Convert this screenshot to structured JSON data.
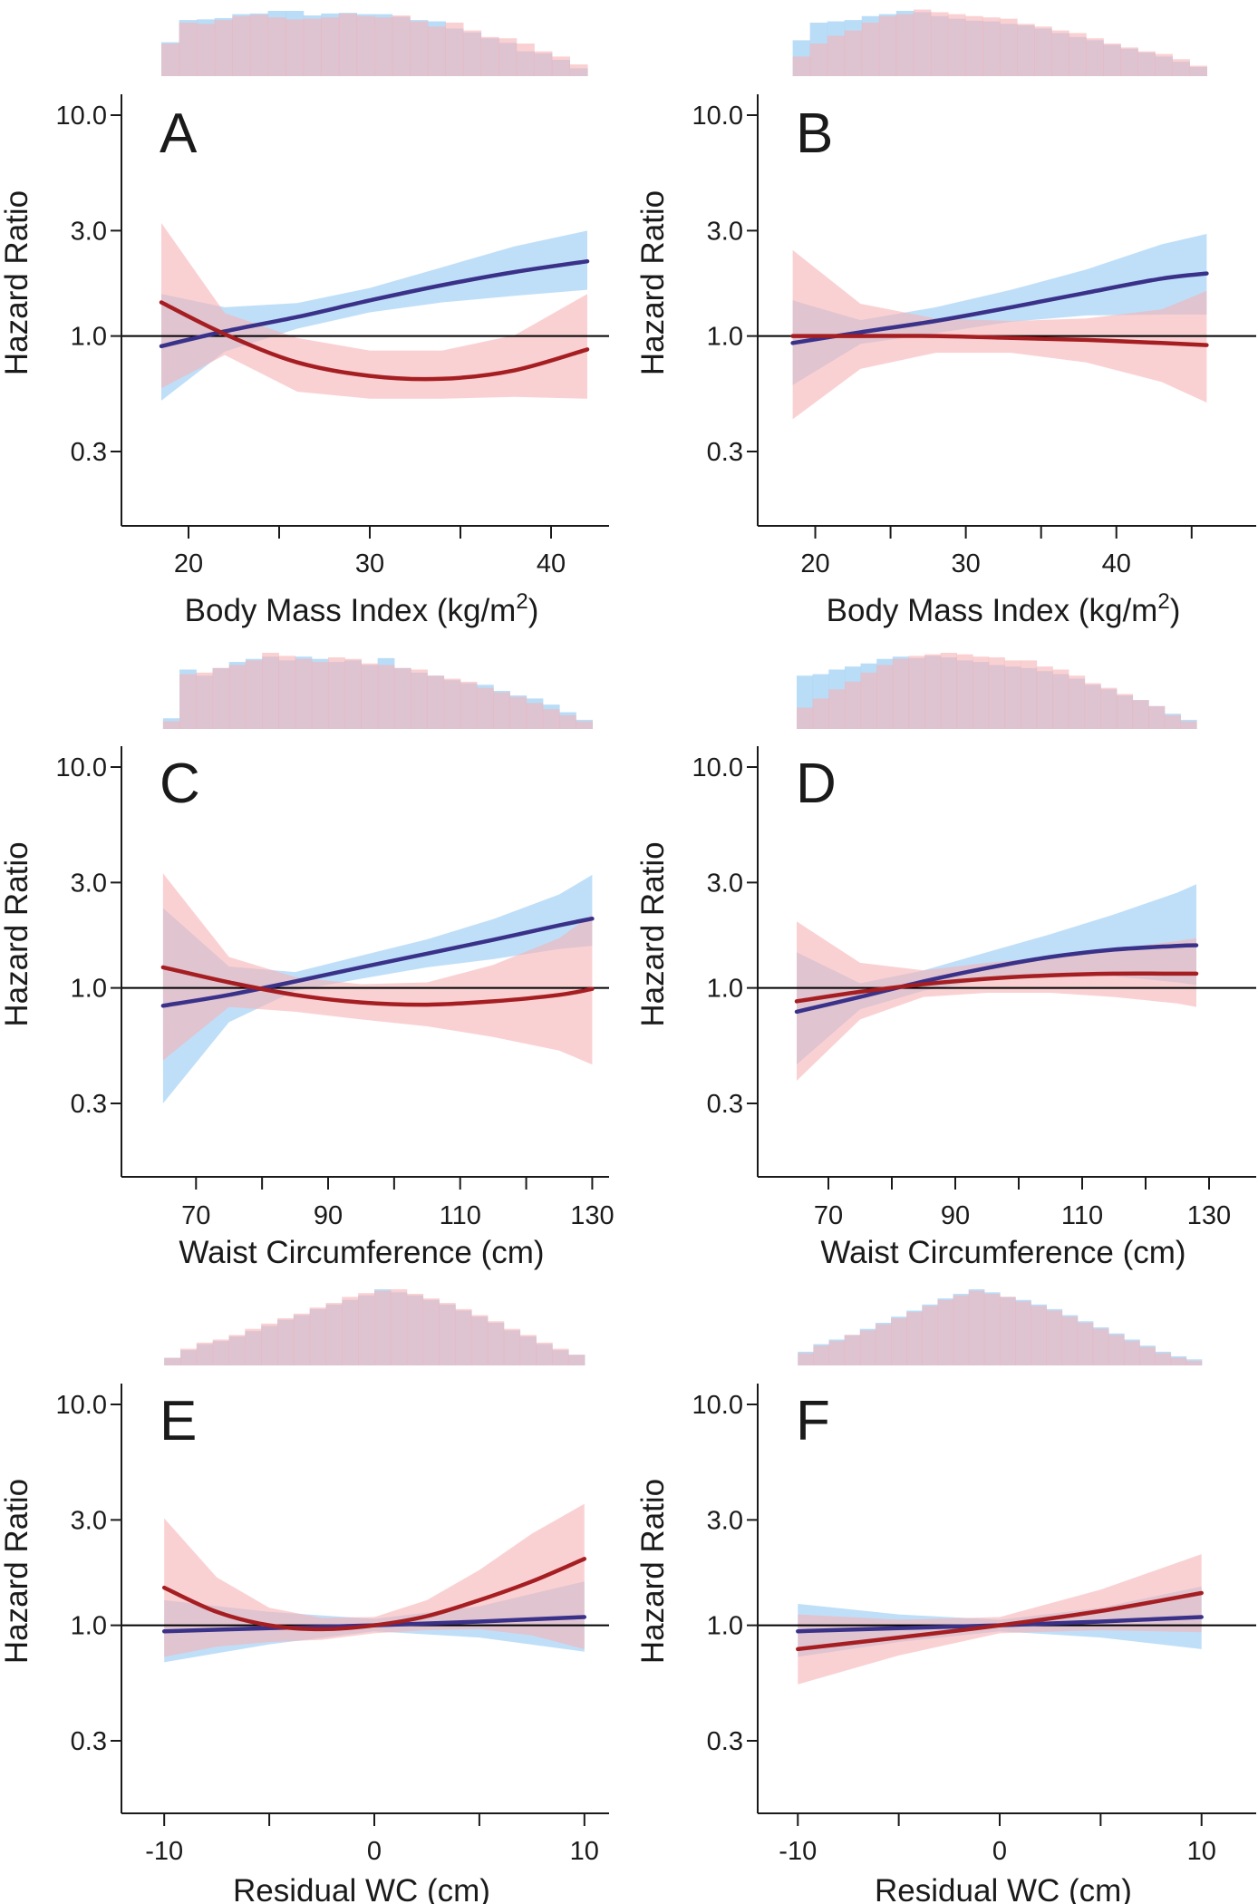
{
  "colors": {
    "blue_line": "#3a3189",
    "red_line": "#a51e22",
    "blue_band": "#a9d4f5",
    "red_band": "#f7b3b6",
    "reference_line": "#000000",
    "axis": "#1a1a1a"
  },
  "chart_data": [
    {
      "panel": "A",
      "type": "line",
      "xlabel": "Body Mass Index (kg/m",
      "xlabel_sup": "2",
      "xlabel_tail": ")",
      "ylabel": "Hazard Ratio",
      "yscale": "log",
      "ylim": [
        0.15,
        12
      ],
      "yticks": [
        "0.3",
        "1.0",
        "3.0",
        "10.0"
      ],
      "xlim": [
        17.5,
        43
      ],
      "xticks": [
        20,
        30,
        40
      ],
      "xticks_minor": [
        25,
        35
      ],
      "reference_y": 1.0,
      "series": [
        {
          "name": "blue",
          "x": [
            18.5,
            22,
            26,
            30,
            34,
            38,
            42
          ],
          "y": [
            0.9,
            1.05,
            1.22,
            1.45,
            1.7,
            1.95,
            2.18
          ],
          "lower": [
            0.51,
            0.85,
            1.08,
            1.28,
            1.42,
            1.52,
            1.62
          ],
          "upper": [
            1.55,
            1.35,
            1.41,
            1.65,
            2.05,
            2.55,
            3.0
          ]
        },
        {
          "name": "red",
          "x": [
            18.5,
            22,
            26,
            30,
            34,
            38,
            42
          ],
          "y": [
            1.42,
            1.02,
            0.76,
            0.66,
            0.64,
            0.7,
            0.87
          ],
          "lower": [
            0.58,
            0.82,
            0.56,
            0.52,
            0.52,
            0.53,
            0.52
          ],
          "upper": [
            3.25,
            1.27,
            0.98,
            0.86,
            0.86,
            1.01,
            1.55
          ]
        }
      ],
      "histogram": {
        "x_start": 18.5,
        "x_end": 42,
        "blue": [
          0.52,
          0.86,
          0.87,
          0.89,
          0.95,
          0.96,
          1.0,
          1.0,
          0.93,
          0.96,
          0.97,
          0.95,
          0.95,
          0.91,
          0.86,
          0.84,
          0.73,
          0.67,
          0.58,
          0.51,
          0.38,
          0.35,
          0.25,
          0.12
        ],
        "red": [
          0.5,
          0.82,
          0.8,
          0.86,
          0.92,
          0.94,
          0.9,
          0.87,
          0.88,
          0.9,
          0.96,
          0.92,
          0.9,
          0.93,
          0.84,
          0.76,
          0.82,
          0.7,
          0.6,
          0.58,
          0.5,
          0.38,
          0.3,
          0.18
        ]
      }
    },
    {
      "panel": "B",
      "type": "line",
      "xlabel": "Body Mass Index (kg/m",
      "xlabel_sup": "2",
      "xlabel_tail": ")",
      "ylabel": "Hazard Ratio",
      "yscale": "log",
      "ylim": [
        0.15,
        12
      ],
      "yticks": [
        "0.3",
        "1.0",
        "3.0",
        "10.0"
      ],
      "xlim": [
        17.5,
        47
      ],
      "xticks": [
        20,
        30,
        40
      ],
      "xticks_minor": [
        25,
        35,
        45
      ],
      "reference_y": 1.0,
      "series": [
        {
          "name": "blue",
          "x": [
            18.5,
            23,
            28,
            33,
            38,
            43,
            46
          ],
          "y": [
            0.93,
            1.04,
            1.17,
            1.35,
            1.57,
            1.82,
            1.92
          ],
          "lower": [
            0.6,
            0.92,
            1.03,
            1.16,
            1.24,
            1.25,
            1.25
          ],
          "upper": [
            1.45,
            1.18,
            1.35,
            1.62,
            2.0,
            2.6,
            2.9
          ]
        },
        {
          "name": "red",
          "x": [
            18.5,
            23,
            28,
            33,
            38,
            43,
            46
          ],
          "y": [
            1.0,
            1.0,
            1.0,
            0.98,
            0.96,
            0.93,
            0.91
          ],
          "lower": [
            0.42,
            0.71,
            0.84,
            0.84,
            0.76,
            0.62,
            0.5
          ],
          "upper": [
            2.45,
            1.4,
            1.2,
            1.17,
            1.2,
            1.32,
            1.6
          ]
        }
      ],
      "histogram": {
        "x_start": 18.5,
        "x_end": 46,
        "blue": [
          0.55,
          0.82,
          0.84,
          0.86,
          0.92,
          0.95,
          1.0,
          0.98,
          0.92,
          0.88,
          0.85,
          0.84,
          0.8,
          0.78,
          0.73,
          0.66,
          0.6,
          0.55,
          0.48,
          0.42,
          0.36,
          0.3,
          0.22,
          0.14
        ],
        "red": [
          0.3,
          0.5,
          0.62,
          0.7,
          0.82,
          0.92,
          0.95,
          1.02,
          0.98,
          0.95,
          0.92,
          0.9,
          0.88,
          0.8,
          0.76,
          0.7,
          0.66,
          0.58,
          0.5,
          0.44,
          0.38,
          0.34,
          0.26,
          0.16
        ]
      }
    },
    {
      "panel": "C",
      "type": "line",
      "xlabel": "Waist Circumference (cm)",
      "xlabel_sup": "",
      "xlabel_tail": "",
      "ylabel": "Hazard Ratio",
      "yscale": "log",
      "ylim": [
        0.15,
        12
      ],
      "yticks": [
        "0.3",
        "1.0",
        "3.0",
        "10.0"
      ],
      "xlim": [
        62,
        132
      ],
      "xticks": [
        70,
        90,
        110,
        130
      ],
      "xticks_minor": [
        80,
        100,
        120
      ],
      "reference_y": 1.0,
      "series": [
        {
          "name": "blue",
          "x": [
            65,
            75,
            85,
            95,
            105,
            115,
            125,
            130
          ],
          "y": [
            0.83,
            0.93,
            1.07,
            1.24,
            1.43,
            1.65,
            1.92,
            2.06
          ],
          "lower": [
            0.3,
            0.7,
            0.97,
            1.1,
            1.24,
            1.35,
            1.5,
            1.55
          ],
          "upper": [
            2.3,
            1.25,
            1.18,
            1.4,
            1.66,
            2.05,
            2.65,
            3.25
          ]
        },
        {
          "name": "red",
          "x": [
            65,
            75,
            85,
            95,
            105,
            115,
            125,
            130
          ],
          "y": [
            1.24,
            1.06,
            0.93,
            0.86,
            0.84,
            0.87,
            0.93,
            0.99
          ],
          "lower": [
            0.47,
            0.82,
            0.78,
            0.72,
            0.67,
            0.6,
            0.52,
            0.45
          ],
          "upper": [
            3.3,
            1.38,
            1.12,
            1.04,
            1.06,
            1.27,
            1.68,
            2.15
          ]
        }
      ],
      "histogram": {
        "x_start": 65,
        "x_end": 130,
        "blue": [
          0.14,
          0.78,
          0.7,
          0.8,
          0.88,
          0.92,
          0.95,
          0.9,
          0.95,
          0.92,
          0.88,
          0.9,
          0.84,
          0.93,
          0.8,
          0.74,
          0.7,
          0.64,
          0.6,
          0.58,
          0.5,
          0.44,
          0.4,
          0.32,
          0.22,
          0.12
        ],
        "red": [
          0.1,
          0.72,
          0.74,
          0.8,
          0.84,
          0.9,
          1.0,
          0.96,
          0.92,
          0.88,
          0.94,
          0.92,
          0.86,
          0.84,
          0.8,
          0.78,
          0.7,
          0.66,
          0.62,
          0.54,
          0.48,
          0.42,
          0.34,
          0.26,
          0.18,
          0.1
        ]
      }
    },
    {
      "panel": "D",
      "type": "line",
      "xlabel": "Waist Circumference (cm)",
      "xlabel_sup": "",
      "xlabel_tail": "",
      "ylabel": "Hazard Ratio",
      "yscale": "log",
      "ylim": [
        0.15,
        12
      ],
      "yticks": [
        "0.3",
        "1.0",
        "3.0",
        "10.0"
      ],
      "xlim": [
        62,
        132
      ],
      "xticks": [
        70,
        90,
        110,
        130
      ],
      "xticks_minor": [
        80,
        100,
        120
      ],
      "reference_y": 1.0,
      "series": [
        {
          "name": "blue",
          "x": [
            65,
            75,
            85,
            95,
            105,
            115,
            125,
            128
          ],
          "y": [
            0.78,
            0.91,
            1.07,
            1.23,
            1.38,
            1.49,
            1.55,
            1.56
          ],
          "lower": [
            0.45,
            0.8,
            0.97,
            1.09,
            1.15,
            1.13,
            1.06,
            1.03
          ],
          "upper": [
            1.45,
            1.05,
            1.2,
            1.45,
            1.75,
            2.15,
            2.7,
            2.95
          ]
        },
        {
          "name": "red",
          "x": [
            65,
            75,
            85,
            95,
            105,
            115,
            125,
            128
          ],
          "y": [
            0.87,
            0.96,
            1.04,
            1.1,
            1.14,
            1.16,
            1.16,
            1.16
          ],
          "lower": [
            0.38,
            0.72,
            0.91,
            0.95,
            0.95,
            0.91,
            0.85,
            0.82
          ],
          "upper": [
            2.0,
            1.3,
            1.2,
            1.3,
            1.38,
            1.5,
            1.63,
            1.68
          ]
        }
      ],
      "histogram": {
        "x_start": 65,
        "x_end": 128,
        "blue": [
          0.7,
          0.72,
          0.78,
          0.82,
          0.86,
          0.92,
          0.95,
          0.93,
          0.96,
          0.94,
          0.9,
          0.88,
          0.84,
          0.82,
          0.8,
          0.76,
          0.72,
          0.66,
          0.58,
          0.52,
          0.44,
          0.38,
          0.3,
          0.2,
          0.12
        ],
        "red": [
          0.28,
          0.4,
          0.52,
          0.62,
          0.74,
          0.84,
          0.92,
          0.96,
          0.98,
          1.0,
          0.98,
          0.95,
          0.94,
          0.9,
          0.9,
          0.82,
          0.78,
          0.7,
          0.6,
          0.54,
          0.46,
          0.38,
          0.3,
          0.18,
          0.1
        ]
      }
    },
    {
      "panel": "E",
      "type": "line",
      "xlabel": "Residual WC (cm)",
      "xlabel_sup": "",
      "xlabel_tail": "",
      "ylabel": "Hazard Ratio",
      "yscale": "log",
      "ylim": [
        0.15,
        12
      ],
      "yticks": [
        "0.3",
        "1.0",
        "3.0",
        "10.0"
      ],
      "xlim": [
        -11,
        11
      ],
      "xticks": [
        -10,
        0,
        10
      ],
      "xticks_minor": [
        -5,
        5
      ],
      "reference_y": 1.0,
      "series": [
        {
          "name": "blue",
          "x": [
            -10,
            -5,
            0,
            5,
            10
          ],
          "y": [
            0.94,
            0.97,
            1.0,
            1.04,
            1.09
          ],
          "lower": [
            0.68,
            0.82,
            0.94,
            0.88,
            0.76
          ],
          "upper": [
            1.3,
            1.15,
            1.07,
            1.22,
            1.58
          ]
        },
        {
          "name": "red",
          "x": [
            -10,
            -7.5,
            -5,
            -2.5,
            0,
            2.5,
            5,
            7.5,
            10
          ],
          "y": [
            1.48,
            1.15,
            1.0,
            0.96,
            1.0,
            1.1,
            1.3,
            1.58,
            2.0
          ],
          "lower": [
            0.72,
            0.8,
            0.84,
            0.86,
            0.92,
            0.95,
            0.96,
            0.9,
            0.78
          ],
          "upper": [
            3.05,
            1.65,
            1.2,
            1.08,
            1.09,
            1.3,
            1.78,
            2.6,
            3.55
          ]
        }
      ],
      "histogram": {
        "x_start": -10,
        "x_end": 10,
        "blue": [
          0.1,
          0.2,
          0.28,
          0.32,
          0.38,
          0.45,
          0.52,
          0.6,
          0.66,
          0.74,
          0.8,
          0.86,
          0.92,
          1.0,
          0.96,
          0.92,
          0.86,
          0.8,
          0.72,
          0.64,
          0.56,
          0.46,
          0.38,
          0.28,
          0.2,
          0.14
        ],
        "red": [
          0.1,
          0.22,
          0.3,
          0.34,
          0.4,
          0.48,
          0.55,
          0.62,
          0.68,
          0.76,
          0.82,
          0.9,
          0.95,
          0.98,
          1.0,
          0.94,
          0.88,
          0.82,
          0.74,
          0.66,
          0.58,
          0.48,
          0.4,
          0.3,
          0.22,
          0.14
        ]
      }
    },
    {
      "panel": "F",
      "type": "line",
      "xlabel": "Residual WC (cm)",
      "xlabel_sup": "",
      "xlabel_tail": "",
      "ylabel": "Hazard Ratio",
      "yscale": "log",
      "ylim": [
        0.15,
        12
      ],
      "yticks": [
        "0.3",
        "1.0",
        "3.0",
        "10.0"
      ],
      "xlim": [
        -11,
        11
      ],
      "xticks": [
        -10,
        0,
        10
      ],
      "xticks_minor": [
        -5,
        5
      ],
      "reference_y": 1.0,
      "series": [
        {
          "name": "blue",
          "x": [
            -10,
            -5,
            0,
            5,
            10
          ],
          "y": [
            0.94,
            0.97,
            1.0,
            1.04,
            1.09
          ],
          "lower": [
            0.72,
            0.84,
            0.94,
            0.88,
            0.78
          ],
          "upper": [
            1.25,
            1.12,
            1.06,
            1.2,
            1.5
          ]
        },
        {
          "name": "red",
          "x": [
            -10,
            -5,
            0,
            5,
            10
          ],
          "y": [
            0.78,
            0.88,
            1.0,
            1.16,
            1.4
          ],
          "lower": [
            0.54,
            0.73,
            0.92,
            0.95,
            0.93
          ],
          "upper": [
            1.12,
            1.06,
            1.09,
            1.45,
            2.1
          ]
        }
      ],
      "histogram": {
        "x_start": -10,
        "x_end": 10,
        "blue": [
          0.18,
          0.28,
          0.34,
          0.4,
          0.48,
          0.56,
          0.64,
          0.72,
          0.8,
          0.88,
          0.94,
          1.0,
          0.96,
          0.9,
          0.86,
          0.8,
          0.74,
          0.66,
          0.58,
          0.5,
          0.42,
          0.34,
          0.26,
          0.18,
          0.12,
          0.08
        ],
        "red": [
          0.16,
          0.26,
          0.32,
          0.4,
          0.46,
          0.54,
          0.62,
          0.7,
          0.78,
          0.86,
          0.92,
          0.98,
          0.94,
          0.9,
          0.84,
          0.78,
          0.72,
          0.64,
          0.56,
          0.48,
          0.4,
          0.32,
          0.24,
          0.16,
          0.1,
          0.06
        ]
      }
    }
  ]
}
